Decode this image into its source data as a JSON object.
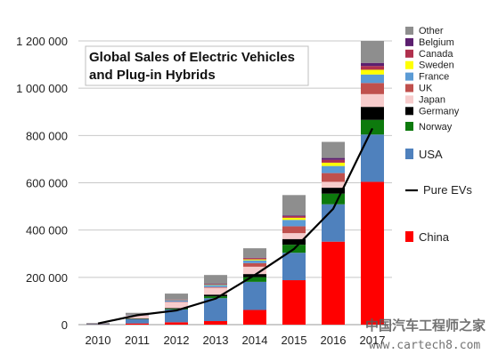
{
  "chart_data": {
    "type": "bar",
    "stacked": true,
    "title": [
      "Global Sales of Electric Vehicles",
      "and Plug-in Hybrids"
    ],
    "categories": [
      "2010",
      "2011",
      "2012",
      "2013",
      "2014",
      "2015",
      "2016",
      "2017"
    ],
    "ylim": [
      0,
      1200000
    ],
    "yticks": [
      0,
      200000,
      400000,
      600000,
      800000,
      1000000,
      1200000
    ],
    "ytick_labels": [
      "0",
      "200 000",
      "400 000",
      "600 000",
      "800 000",
      "1 000 000",
      "1 200 000"
    ],
    "grid": true,
    "legend_position": "right",
    "series": [
      {
        "name": "China",
        "color": "#ff0000",
        "values": [
          1000,
          5000,
          10000,
          15000,
          62000,
          188000,
          351000,
          604000
        ]
      },
      {
        "name": "USA",
        "color": "#4f81bd",
        "values": [
          2000,
          18000,
          54000,
          97000,
          119000,
          116000,
          158000,
          200000
        ]
      },
      {
        "name": "Norway",
        "color": "#0d7a0d",
        "values": [
          300,
          1000,
          3000,
          8000,
          20000,
          34000,
          45000,
          62000
        ]
      },
      {
        "name": "Germany",
        "color": "#000000",
        "values": [
          500,
          2000,
          3000,
          7000,
          13000,
          24000,
          25000,
          55000
        ]
      },
      {
        "name": "Japan",
        "color": "#f7cccc",
        "values": [
          500,
          12000,
          25000,
          29000,
          31000,
          25000,
          25000,
          54000
        ]
      },
      {
        "name": "UK",
        "color": "#c0504d",
        "values": [
          300,
          1000,
          2000,
          3000,
          15000,
          29000,
          37000,
          47000
        ]
      },
      {
        "name": "France",
        "color": "#5b9bd5",
        "values": [
          500,
          2000,
          6000,
          9000,
          12000,
          27000,
          30000,
          36000
        ]
      },
      {
        "name": "Sweden",
        "color": "#ffff00",
        "values": [
          100,
          200,
          900,
          1500,
          4000,
          9000,
          14000,
          20000
        ]
      },
      {
        "name": "Canada",
        "color": "#b0304d",
        "values": [
          100,
          500,
          2000,
          2000,
          5000,
          7000,
          12000,
          16000
        ]
      },
      {
        "name": "Belgium",
        "color": "#5b1f6f",
        "values": [
          100,
          200,
          500,
          1500,
          2000,
          3000,
          8000,
          13000
        ]
      },
      {
        "name": "Other",
        "color": "#8e8e8e",
        "values": [
          2000,
          8000,
          25000,
          37000,
          40000,
          86000,
          68000,
          93000
        ]
      }
    ],
    "line": {
      "name": "Pure EVs",
      "color": "#000000",
      "values": [
        5000,
        40000,
        60000,
        110000,
        210000,
        320000,
        490000,
        830000
      ]
    },
    "legend_order": [
      "Other",
      "Belgium",
      "Canada",
      "Sweden",
      "France",
      "UK",
      "Japan",
      "Germany",
      "Norway",
      "USA",
      "Pure EVs",
      "China"
    ]
  },
  "watermark": {
    "line1": "中国汽车工程师之家",
    "line2": "www.cartech8.com"
  }
}
